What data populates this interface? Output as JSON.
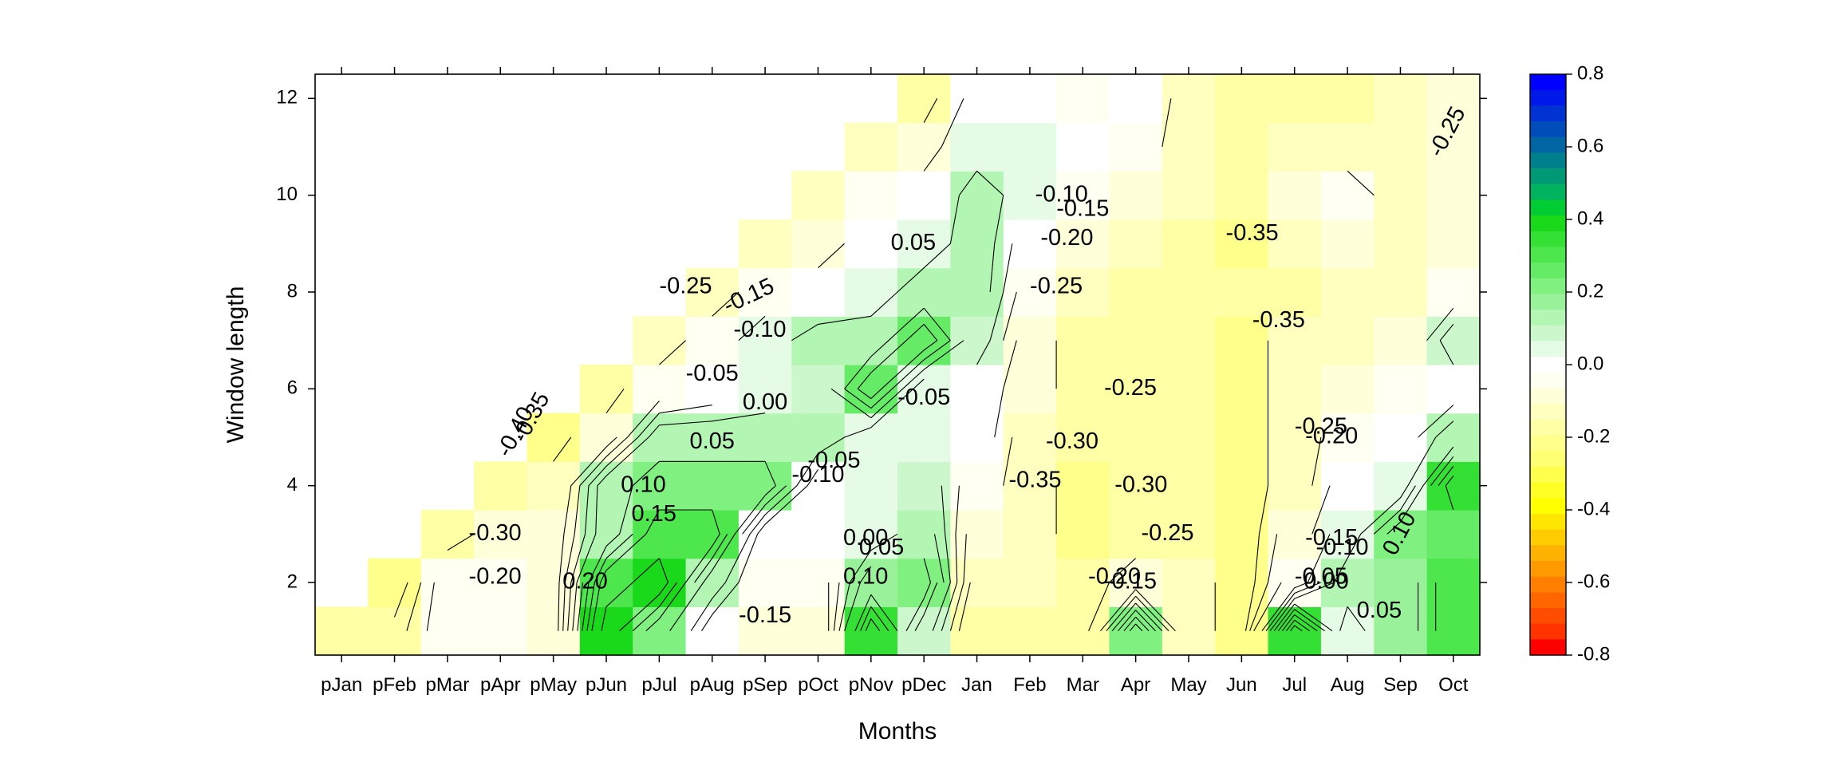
{
  "chart_data": {
    "type": "heatmap",
    "title": "",
    "xlabel": "Months",
    "ylabel": "Window length",
    "x_categories": [
      "pJan",
      "pFeb",
      "pMar",
      "pApr",
      "pMay",
      "pJun",
      "pJul",
      "pAug",
      "pSep",
      "pOct",
      "pNov",
      "pDec",
      "Jan",
      "Feb",
      "Mar",
      "Apr",
      "May",
      "Jun",
      "Jul",
      "Aug",
      "Sep",
      "Oct"
    ],
    "y_values": [
      1,
      2,
      3,
      4,
      5,
      6,
      7,
      8,
      9,
      10,
      11,
      12
    ],
    "y_ticks": [
      2,
      4,
      6,
      8,
      10,
      12
    ],
    "y_range": [
      0.5,
      12.5
    ],
    "colorbar": {
      "ticks": [
        "0.8",
        "0.6",
        "0.4",
        "0.2",
        "0.0",
        "-0.2",
        "-0.4",
        "-0.6",
        "-0.8"
      ],
      "range": [
        -0.8,
        0.8
      ],
      "step": 0.05,
      "colors_high_to_low": [
        "#0000ff",
        "#0019e8",
        "#0033d1",
        "#004cba",
        "#0066a3",
        "#007f8c",
        "#009975",
        "#00b35e",
        "#00cc33",
        "#1ad91a",
        "#33e033",
        "#4de64d",
        "#66eb66",
        "#80f080",
        "#99f299",
        "#b3f5b3",
        "#ccf7cc",
        "#e6fbe6",
        "#ffffff",
        "#fffff2",
        "#ffffd9",
        "#ffffbf",
        "#ffffa6",
        "#ffff8c",
        "#ffff73",
        "#ffff4d",
        "#ffff26",
        "#ffff00",
        "#ffe600",
        "#ffcc00",
        "#ffb300",
        "#ff9900",
        "#ff8000",
        "#ff6600",
        "#ff4d00",
        "#ff3300",
        "#ff0000"
      ]
    },
    "grid": "values[row][col], rows = window length 1..12 (bottom to top), cols follow x_categories; null = no data",
    "values": [
      [
        -0.3,
        -0.28,
        -0.15,
        -0.15,
        -0.2,
        0.35,
        0.15,
        -0.1,
        -0.2,
        -0.2,
        0.3,
        0.0,
        -0.3,
        -0.3,
        -0.3,
        0.15,
        -0.25,
        -0.35,
        0.3,
        -0.05,
        0.1,
        0.25
      ],
      [
        null,
        -0.35,
        -0.15,
        -0.15,
        -0.2,
        0.25,
        0.35,
        0.05,
        -0.15,
        -0.15,
        0.1,
        0.15,
        -0.25,
        -0.25,
        -0.3,
        -0.2,
        -0.25,
        -0.35,
        -0.15,
        0.05,
        0.1,
        0.25
      ],
      [
        null,
        null,
        -0.3,
        -0.2,
        -0.2,
        0.05,
        0.25,
        0.25,
        -0.1,
        -0.1,
        -0.05,
        0.05,
        -0.2,
        -0.25,
        -0.35,
        -0.3,
        -0.3,
        -0.35,
        -0.2,
        -0.05,
        0.15,
        0.2
      ],
      [
        null,
        null,
        null,
        -0.3,
        -0.25,
        0.05,
        0.15,
        0.15,
        0.15,
        -0.1,
        -0.05,
        0.0,
        -0.15,
        -0.25,
        -0.35,
        -0.3,
        -0.3,
        -0.35,
        -0.25,
        -0.1,
        -0.05,
        0.3
      ],
      [
        null,
        null,
        null,
        null,
        -0.35,
        -0.2,
        0.05,
        0.05,
        0.05,
        0.05,
        -0.05,
        -0.05,
        -0.1,
        -0.25,
        -0.3,
        -0.3,
        -0.3,
        -0.35,
        -0.25,
        -0.15,
        -0.1,
        0.05
      ],
      [
        null,
        null,
        null,
        null,
        null,
        -0.3,
        -0.15,
        -0.1,
        -0.05,
        0.0,
        0.2,
        -0.05,
        -0.1,
        -0.2,
        -0.3,
        -0.3,
        -0.3,
        -0.35,
        -0.25,
        -0.2,
        -0.15,
        -0.1
      ],
      [
        null,
        null,
        null,
        null,
        null,
        null,
        -0.25,
        -0.15,
        -0.05,
        0.05,
        0.05,
        0.2,
        0.0,
        -0.2,
        -0.3,
        -0.3,
        -0.3,
        -0.35,
        -0.25,
        -0.25,
        -0.2,
        0.0
      ],
      [
        null,
        null,
        null,
        null,
        null,
        null,
        null,
        -0.25,
        -0.15,
        -0.1,
        -0.05,
        0.05,
        0.05,
        -0.15,
        -0.25,
        -0.3,
        -0.3,
        -0.3,
        -0.3,
        -0.25,
        -0.25,
        -0.15
      ],
      [
        null,
        null,
        null,
        null,
        null,
        null,
        null,
        null,
        -0.25,
        -0.2,
        -0.1,
        -0.05,
        0.05,
        -0.1,
        -0.2,
        -0.25,
        -0.3,
        -0.35,
        -0.25,
        -0.2,
        -0.25,
        -0.2
      ],
      [
        null,
        null,
        null,
        null,
        null,
        null,
        null,
        null,
        null,
        -0.25,
        -0.15,
        -0.1,
        0.05,
        -0.05,
        -0.15,
        -0.2,
        -0.25,
        -0.3,
        -0.2,
        -0.15,
        -0.25,
        -0.2
      ],
      [
        null,
        null,
        null,
        null,
        null,
        null,
        null,
        null,
        null,
        null,
        -0.25,
        -0.2,
        -0.05,
        -0.05,
        -0.1,
        -0.15,
        -0.25,
        -0.3,
        -0.25,
        -0.25,
        -0.25,
        -0.2
      ],
      [
        null,
        null,
        null,
        null,
        null,
        null,
        null,
        null,
        null,
        null,
        null,
        -0.3,
        -0.1,
        -0.1,
        -0.15,
        -0.1,
        -0.25,
        -0.3,
        -0.3,
        -0.3,
        -0.25,
        -0.2
      ]
    ],
    "contour_labels": [
      {
        "text": "-0.40",
        "x": 4.3,
        "y": 5.1,
        "angle": -62
      },
      {
        "text": "-0.35",
        "x": 4.6,
        "y": 5.4,
        "angle": -62
      },
      {
        "text": "-0.30",
        "x": 3.9,
        "y": 3.0,
        "angle": 0
      },
      {
        "text": "-0.20",
        "x": 3.9,
        "y": 2.1,
        "angle": 0
      },
      {
        "text": "-0.25",
        "x": 7.5,
        "y": 8.1,
        "angle": 0
      },
      {
        "text": "-0.15",
        "x": 8.7,
        "y": 7.9,
        "angle": -25
      },
      {
        "text": "-0.10",
        "x": 8.9,
        "y": 7.2,
        "angle": 0
      },
      {
        "text": "-0.05",
        "x": 8.0,
        "y": 6.3,
        "angle": 0
      },
      {
        "text": "0.00",
        "x": 9.0,
        "y": 5.7,
        "angle": 0
      },
      {
        "text": "0.05",
        "x": 8.0,
        "y": 4.9,
        "angle": 0
      },
      {
        "text": "0.10",
        "x": 6.7,
        "y": 4.0,
        "angle": 0
      },
      {
        "text": "0.15",
        "x": 6.9,
        "y": 3.4,
        "angle": 0
      },
      {
        "text": "0.20",
        "x": 5.6,
        "y": 2.0,
        "angle": 0
      },
      {
        "text": "-0.05",
        "x": 10.3,
        "y": 4.5,
        "angle": 0
      },
      {
        "text": "-0.10",
        "x": 10.0,
        "y": 4.2,
        "angle": 0
      },
      {
        "text": "-0.15",
        "x": 9.0,
        "y": 1.3,
        "angle": 0
      },
      {
        "text": "0.00",
        "x": 10.9,
        "y": 2.9,
        "angle": 0
      },
      {
        "text": "0.05",
        "x": 11.2,
        "y": 2.7,
        "angle": 0
      },
      {
        "text": "0.10",
        "x": 10.9,
        "y": 2.1,
        "angle": 0
      },
      {
        "text": "0.05",
        "x": 11.8,
        "y": 9.0,
        "angle": 0
      },
      {
        "text": "-0.05",
        "x": 12.0,
        "y": 5.8,
        "angle": 0
      },
      {
        "text": "-0.10",
        "x": 14.6,
        "y": 10.0,
        "angle": 0
      },
      {
        "text": "-0.15",
        "x": 15.0,
        "y": 9.7,
        "angle": 0
      },
      {
        "text": "-0.20",
        "x": 14.7,
        "y": 9.1,
        "angle": 0
      },
      {
        "text": "-0.25",
        "x": 14.5,
        "y": 8.1,
        "angle": 0
      },
      {
        "text": "-0.25",
        "x": 15.9,
        "y": 6.0,
        "angle": 0
      },
      {
        "text": "-0.30",
        "x": 14.8,
        "y": 4.9,
        "angle": 0
      },
      {
        "text": "-0.35",
        "x": 14.1,
        "y": 4.1,
        "angle": 0
      },
      {
        "text": "-0.30",
        "x": 16.1,
        "y": 4.0,
        "angle": 0
      },
      {
        "text": "-0.25",
        "x": 16.6,
        "y": 3.0,
        "angle": 0
      },
      {
        "text": "-0.20",
        "x": 15.6,
        "y": 2.1,
        "angle": 0
      },
      {
        "text": "-0.15",
        "x": 15.9,
        "y": 2.0,
        "angle": 0
      },
      {
        "text": "-0.35",
        "x": 18.2,
        "y": 9.2,
        "angle": 0
      },
      {
        "text": "-0.35",
        "x": 18.7,
        "y": 7.4,
        "angle": 0
      },
      {
        "text": "-0.25",
        "x": 19.5,
        "y": 5.2,
        "angle": 0
      },
      {
        "text": "-0.20",
        "x": 19.7,
        "y": 5.0,
        "angle": 0
      },
      {
        "text": "-0.15",
        "x": 19.7,
        "y": 2.9,
        "angle": 0
      },
      {
        "text": "-0.10",
        "x": 19.9,
        "y": 2.7,
        "angle": 0
      },
      {
        "text": "-0.05",
        "x": 19.5,
        "y": 2.1,
        "angle": 0
      },
      {
        "text": "0.00",
        "x": 19.6,
        "y": 2.0,
        "angle": 0
      },
      {
        "text": "0.05",
        "x": 20.6,
        "y": 1.4,
        "angle": 0
      },
      {
        "text": "0.10",
        "x": 21.0,
        "y": 3.0,
        "angle": -62
      },
      {
        "text": "-0.25",
        "x": 21.9,
        "y": 11.3,
        "angle": -62
      }
    ]
  }
}
